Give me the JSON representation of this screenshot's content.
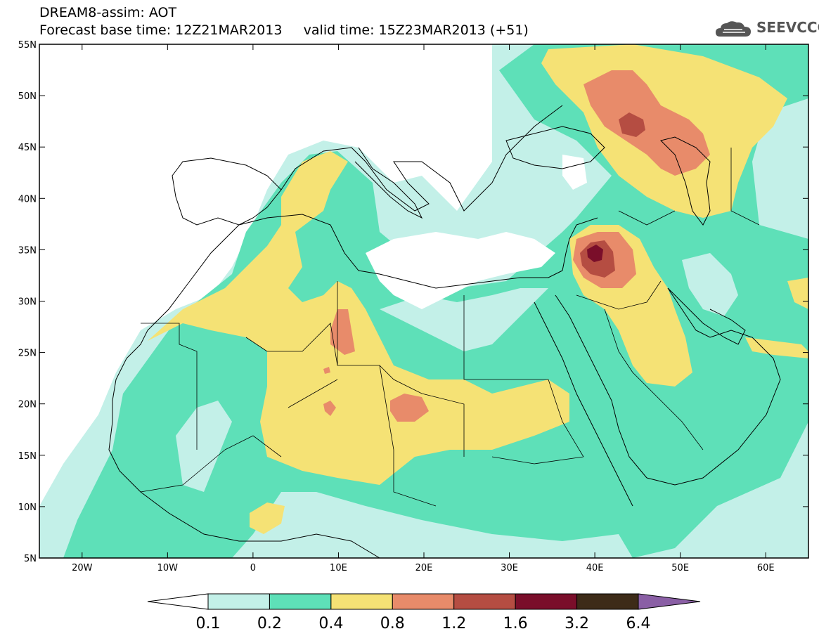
{
  "header": {
    "line1": "DREAM8-assim: AOT",
    "line2": "Forecast base time: 12Z21MAR2013     valid time: 15Z23MAR2013 (+51)",
    "logo_text": "SEEVCCC"
  },
  "map": {
    "lon_range": [
      -25,
      65
    ],
    "lat_range": [
      5,
      55
    ],
    "lat_ticks": [
      {
        "value": 55,
        "label": "55N"
      },
      {
        "value": 50,
        "label": "50N"
      },
      {
        "value": 45,
        "label": "45N"
      },
      {
        "value": 40,
        "label": "40N"
      },
      {
        "value": 35,
        "label": "35N"
      },
      {
        "value": 30,
        "label": "30N"
      },
      {
        "value": 25,
        "label": "25N"
      },
      {
        "value": 20,
        "label": "20N"
      },
      {
        "value": 15,
        "label": "15N"
      },
      {
        "value": 10,
        "label": "10N"
      },
      {
        "value": 5,
        "label": "5N"
      }
    ],
    "lon_ticks": [
      {
        "value": -20,
        "label": "20W"
      },
      {
        "value": -10,
        "label": "10W"
      },
      {
        "value": 0,
        "label": "0"
      },
      {
        "value": 10,
        "label": "10E"
      },
      {
        "value": 20,
        "label": "20E"
      },
      {
        "value": 30,
        "label": "30E"
      },
      {
        "value": 40,
        "label": "40E"
      },
      {
        "value": 50,
        "label": "50E"
      },
      {
        "value": 60,
        "label": "60E"
      }
    ]
  },
  "colorbar": {
    "labels": [
      "0.1",
      "0.2",
      "0.4",
      "0.8",
      "1.2",
      "1.6",
      "3.2",
      "6.4"
    ],
    "colors": [
      "#ffffff",
      "#c3f0e8",
      "#5ee0b8",
      "#f5e275",
      "#e88b6a",
      "#b54d42",
      "#7a0e2a",
      "#3d2b18",
      "#8a5fa5"
    ]
  },
  "legend_colors": {
    "c01": "#c3f0e8",
    "c02": "#5ee0b8",
    "c04": "#f5e275",
    "c08": "#e88b6a",
    "c12": "#b54d42",
    "c16": "#7a0e2a"
  }
}
